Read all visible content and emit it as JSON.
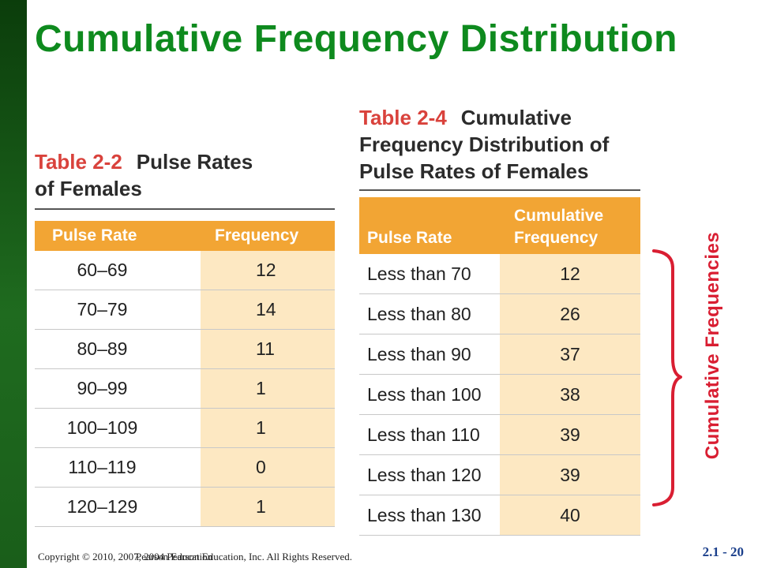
{
  "slide": {
    "title": "Cumulative Frequency Distribution",
    "slide_number": "2.1 - 20",
    "copyright_line": "Copyright © 2010, 2007, 2004 Pearson Education, Inc. All Rights Reserved.",
    "copyright_overlay": "Pearson Education"
  },
  "table_2_2": {
    "label": "Table 2-2",
    "title_line1": "Pulse Rates",
    "title_line2": "of Females",
    "headers": [
      "Pulse Rate",
      "Frequency"
    ],
    "rows": [
      [
        "60–69",
        "12"
      ],
      [
        "70–79",
        "14"
      ],
      [
        "80–89",
        "11"
      ],
      [
        "90–99",
        "1"
      ],
      [
        "100–109",
        "1"
      ],
      [
        "110–119",
        "0"
      ],
      [
        "120–129",
        "1"
      ]
    ]
  },
  "table_2_4": {
    "label": "Table 2-4",
    "title_line1": "Cumulative",
    "title_line2": "Frequency Distribution of",
    "title_line3": "Pulse Rates of Females",
    "headers": [
      "Pulse Rate",
      "Cumulative",
      "Frequency"
    ],
    "rows": [
      [
        "Less than 70",
        "12"
      ],
      [
        "Less than 80",
        "26"
      ],
      [
        "Less than 90",
        "37"
      ],
      [
        "Less than 100",
        "38"
      ],
      [
        "Less than 110",
        "39"
      ],
      [
        "Less than 120",
        "39"
      ],
      [
        "Less than 130",
        "40"
      ]
    ]
  },
  "annotation": {
    "label": "Cumulative Frequencies",
    "color": "#d91e32"
  },
  "colors": {
    "title_green": "#0e8a1e",
    "header_orange": "#f2a534",
    "value_cell": "#fde8c2",
    "table_label_red": "#d9423c"
  }
}
